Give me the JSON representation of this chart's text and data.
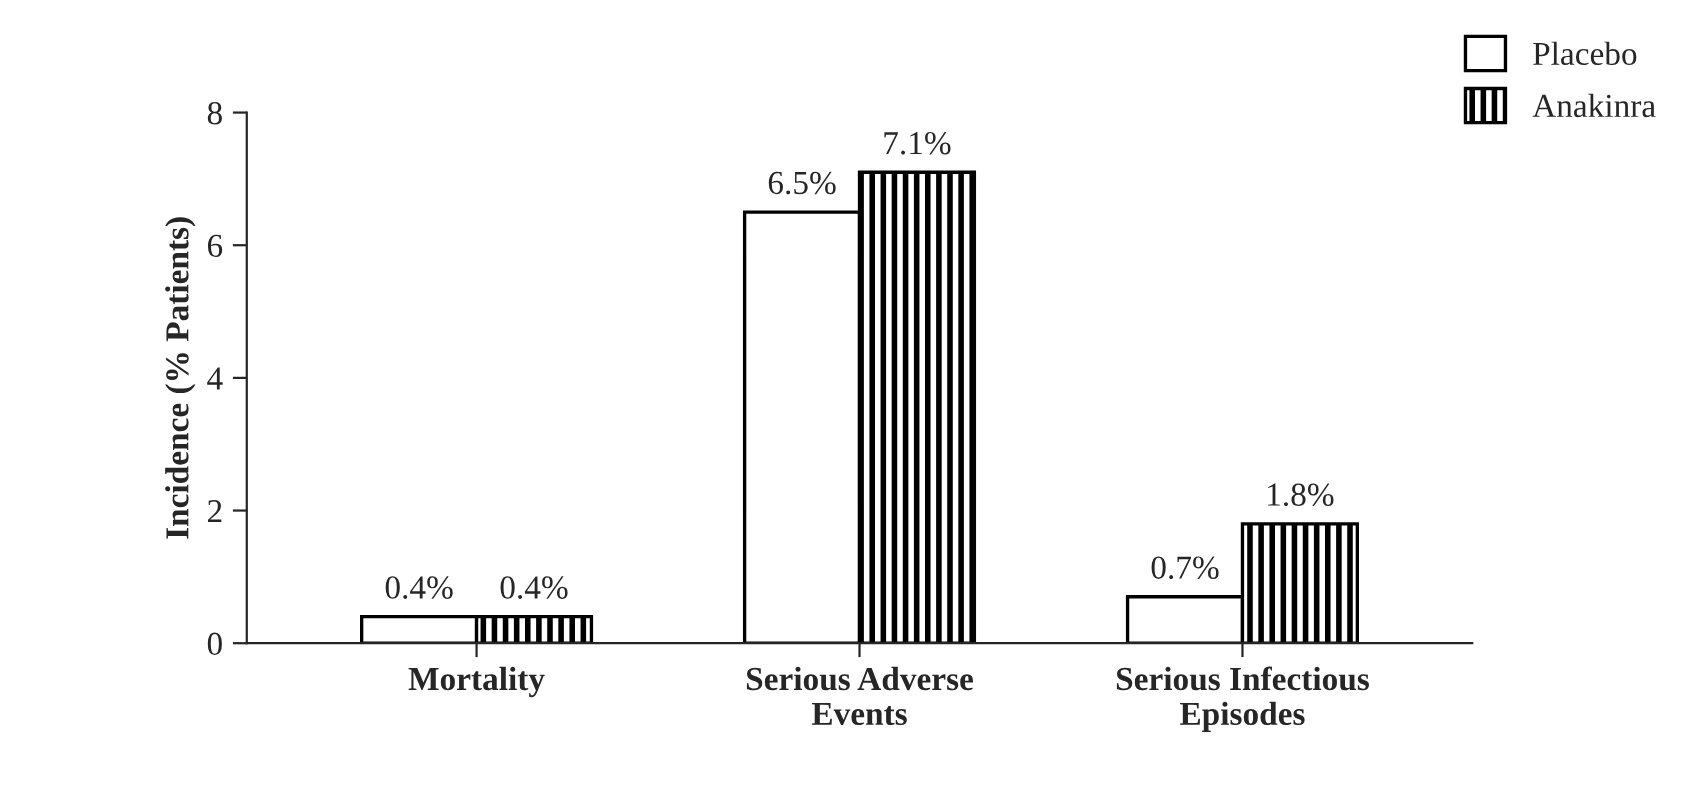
{
  "chart_data": {
    "type": "bar",
    "ylabel": "Incidence (% Patients)",
    "categories": [
      "Mortality",
      "Serious Adverse\nEvents",
      "Serious Infectious\nEpisodes"
    ],
    "series": [
      {
        "name": "Placebo",
        "color": "#ffffff",
        "values": [
          0.4,
          6.5,
          0.7
        ],
        "value_labels": [
          "0.4%",
          "6.5%",
          "0.7%"
        ]
      },
      {
        "name": "Anakinra",
        "color": "#000000",
        "values": [
          0.4,
          7.1,
          1.8
        ],
        "value_labels": [
          "0.4%",
          "7.1%",
          "1.8%"
        ]
      }
    ],
    "ylim": [
      0,
      8
    ],
    "yticks": [
      0,
      2,
      4,
      6,
      8
    ],
    "grid": false,
    "legend": "top right"
  }
}
